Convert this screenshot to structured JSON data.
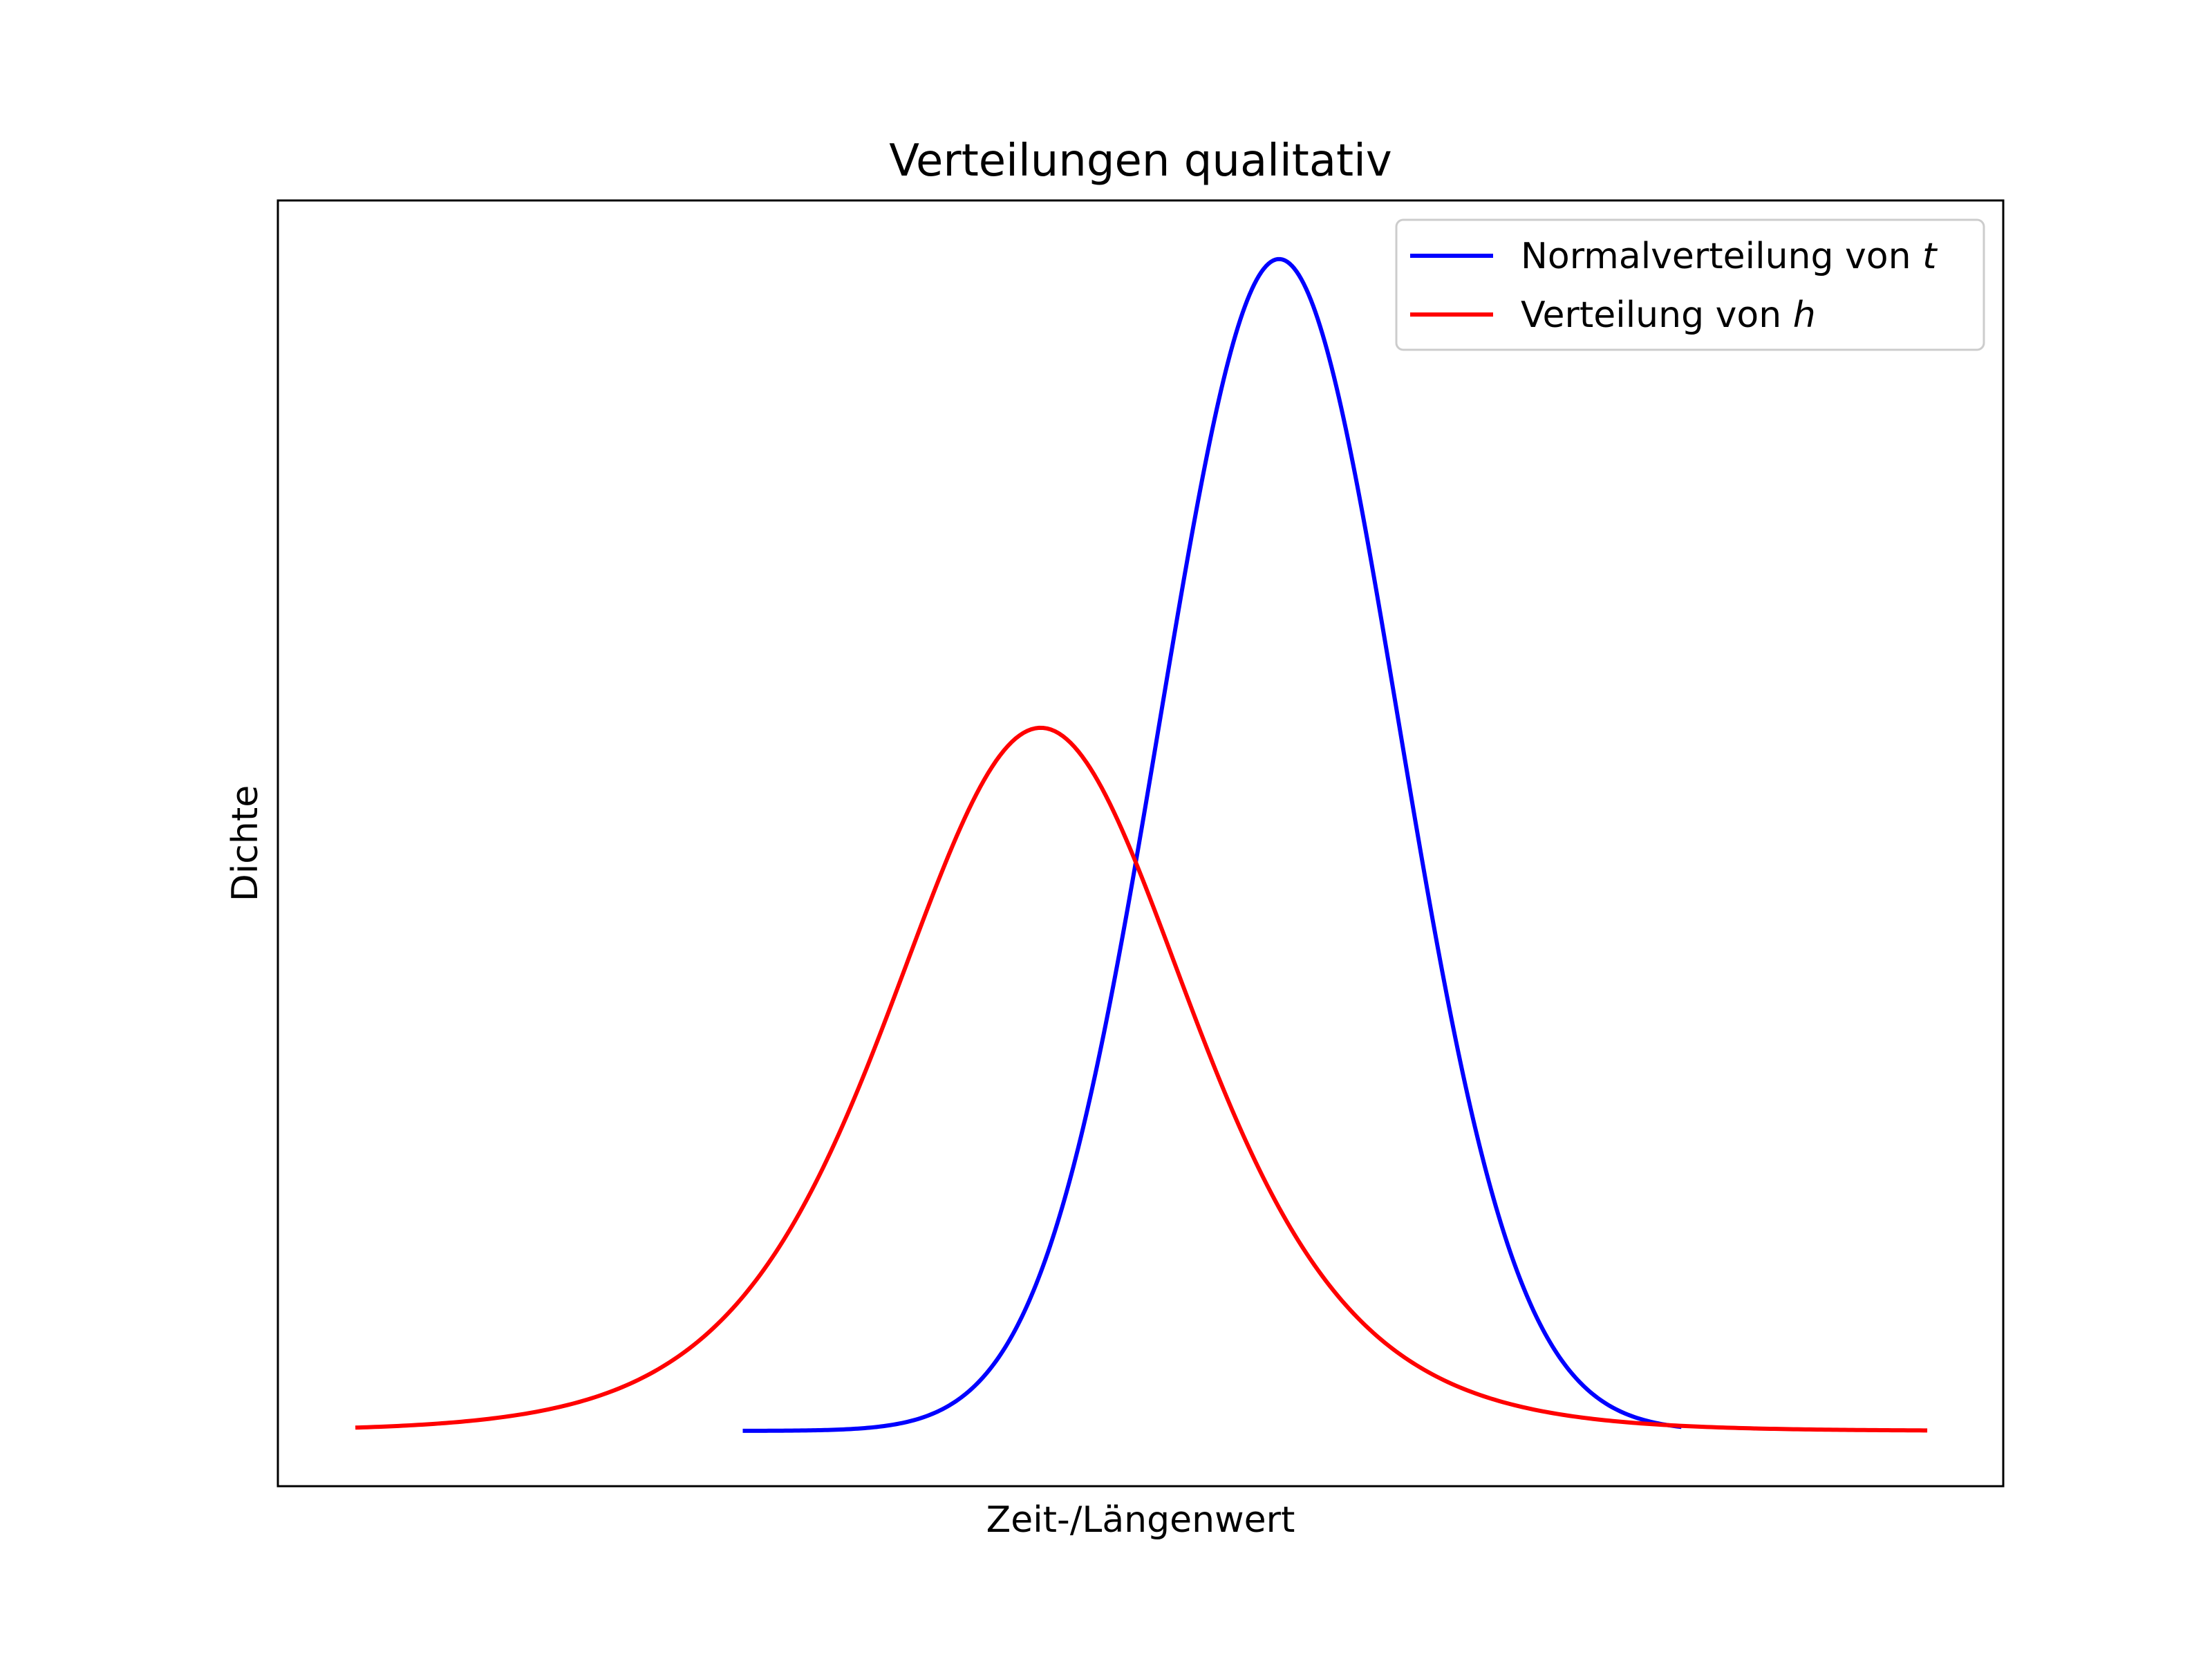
{
  "chart_data": {
    "type": "line",
    "title": "Verteilungen qualitativ",
    "xlabel": "Zeit-/Längenwert",
    "ylabel": "Dichte",
    "xlim": [
      -4.72,
      6.86
    ],
    "ylim": [
      -0.0472,
      1.05
    ],
    "x_ticks_shown": false,
    "y_ticks_shown": false,
    "grid": false,
    "legend_position": "top-right",
    "series": [
      {
        "name": "Normalverteilung von t",
        "label_plain": "Normalverteilung von ",
        "label_italic": "t",
        "color": "#0000ff",
        "shape": "normal",
        "mean": 2.0,
        "sd": 0.8,
        "x_range": [
          -1.6,
          4.7
        ],
        "peak": 1.0
      },
      {
        "name": "Verteilung von h",
        "label_plain": "Verteilung von ",
        "label_italic": "h",
        "color": "#ff0000",
        "shape": "logistic",
        "location": 0.4,
        "scale": 0.68,
        "x_range": [
          -4.2,
          6.35
        ],
        "peak": 0.6
      }
    ]
  }
}
